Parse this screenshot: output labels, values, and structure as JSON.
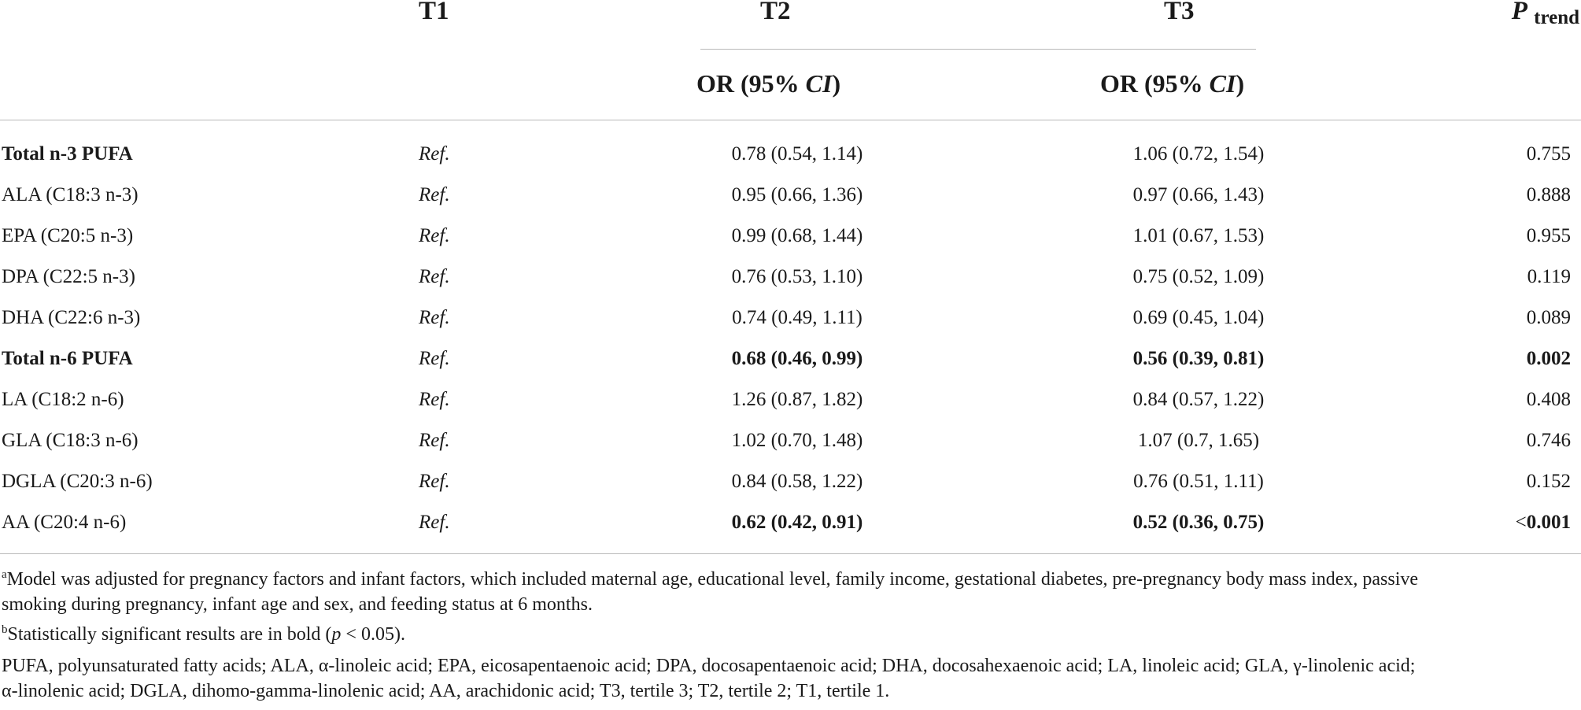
{
  "header": {
    "t1": "T1",
    "t2": "T2",
    "t3": "T3",
    "p": "P",
    "p_sub": "trend",
    "or_prefix": "OR (95% ",
    "or_ci": "CI",
    "or_suffix": ")"
  },
  "rows": [
    {
      "label": "Total n-3 PUFA",
      "ref": "Ref.",
      "t2": "0.78 (0.54, 1.14)",
      "t3": "1.06 (0.72, 1.54)",
      "p": "0.755"
    },
    {
      "label": "ALA (C18:3 n-3)",
      "ref": "Ref.",
      "t2": "0.95 (0.66, 1.36)",
      "t3": "0.97 (0.66, 1.43)",
      "p": "0.888"
    },
    {
      "label": "EPA (C20:5 n-3)",
      "ref": "Ref.",
      "t2": "0.99 (0.68, 1.44)",
      "t3": "1.01 (0.67, 1.53)",
      "p": "0.955"
    },
    {
      "label": "DPA (C22:5 n-3)",
      "ref": "Ref.",
      "t2": "0.76 (0.53, 1.10)",
      "t3": "0.75 (0.52, 1.09)",
      "p": "0.119"
    },
    {
      "label": "DHA (C22:6 n-3)",
      "ref": "Ref.",
      "t2": "0.74 (0.49, 1.11)",
      "t3": "0.69 (0.45, 1.04)",
      "p": "0.089"
    },
    {
      "label": "Total n-6 PUFA",
      "ref": "Ref.",
      "t2": "0.68 (0.46, 0.99)",
      "t3": "0.56 (0.39, 0.81)",
      "p": "0.002"
    },
    {
      "label": "LA (C18:2 n-6)",
      "ref": "Ref.",
      "t2": "1.26 (0.87, 1.82)",
      "t3": "0.84 (0.57, 1.22)",
      "p": "0.408"
    },
    {
      "label": "GLA (C18:3 n-6)",
      "ref": "Ref.",
      "t2": "1.02 (0.70, 1.48)",
      "t3": "1.07 (0.7, 1.65)",
      "p": "0.746"
    },
    {
      "label": "DGLA (C20:3 n-6)",
      "ref": "Ref.",
      "t2": "0.84 (0.58, 1.22)",
      "t3": "0.76 (0.51, 1.11)",
      "p": "0.152"
    },
    {
      "label": "AA (C20:4 n-6)",
      "ref": "Ref.",
      "t2": "0.62 (0.42, 0.91)",
      "t3": "0.52 (0.36, 0.75)",
      "p_prefix": "<",
      "p": "0.001"
    }
  ],
  "footnotes": {
    "a_mark": "a",
    "a_line1": "Model was adjusted for pregnancy factors and infant factors, which included maternal age, educational level, family income, gestational diabetes, pre-pregnancy body mass index, passive",
    "a_line2": "smoking during pregnancy, infant age and sex, and feeding status at 6 months.",
    "b_mark": "b",
    "b_text_pre": "Statistically significant results are in bold (",
    "b_p": "p",
    "b_text_post": " < 0.05).",
    "abbr_line1": "PUFA, polyunsaturated fatty acids; ALA, α-linoleic acid; EPA, eicosapentaenoic acid; DPA, docosapentaenoic acid; DHA, docosahexaenoic acid; LA, linoleic acid; GLA, γ-linolenic acid;",
    "abbr_line2": "α-linolenic acid; DGLA, dihomo-gamma-linolenic acid; AA, arachidonic acid; T3, tertile 3; T2, tertile 2; T1, tertile 1."
  }
}
